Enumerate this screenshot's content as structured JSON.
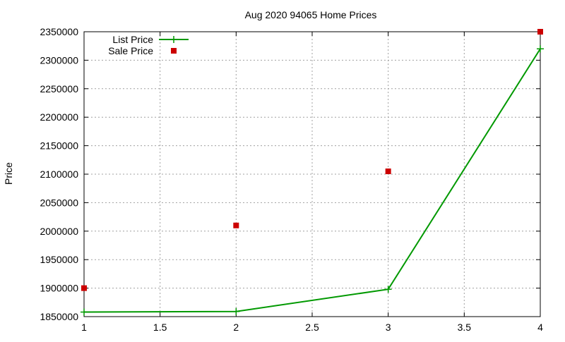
{
  "chart_data": {
    "type": "line",
    "title": "Aug 2020 94065 Home Prices",
    "xlabel": "",
    "ylabel": "Price",
    "xlim": [
      1,
      4
    ],
    "ylim": [
      1850000,
      2350000
    ],
    "x_ticks": [
      1,
      1.5,
      2,
      2.5,
      3,
      3.5,
      4
    ],
    "y_ticks": [
      1850000,
      1900000,
      1950000,
      2000000,
      2050000,
      2100000,
      2150000,
      2200000,
      2250000,
      2300000,
      2350000
    ],
    "grid": true,
    "legend_position": "top-left",
    "series": [
      {
        "name": "List Price",
        "style": "line+points",
        "color": "#009900",
        "x": [
          1,
          2,
          3,
          4
        ],
        "values": [
          1858000,
          1859000,
          1898000,
          2320000
        ]
      },
      {
        "name": "Sale Price",
        "style": "points",
        "color": "#cc0000",
        "x": [
          1,
          2,
          3,
          4
        ],
        "values": [
          1900000,
          2010000,
          2105000,
          2350000
        ]
      }
    ]
  }
}
